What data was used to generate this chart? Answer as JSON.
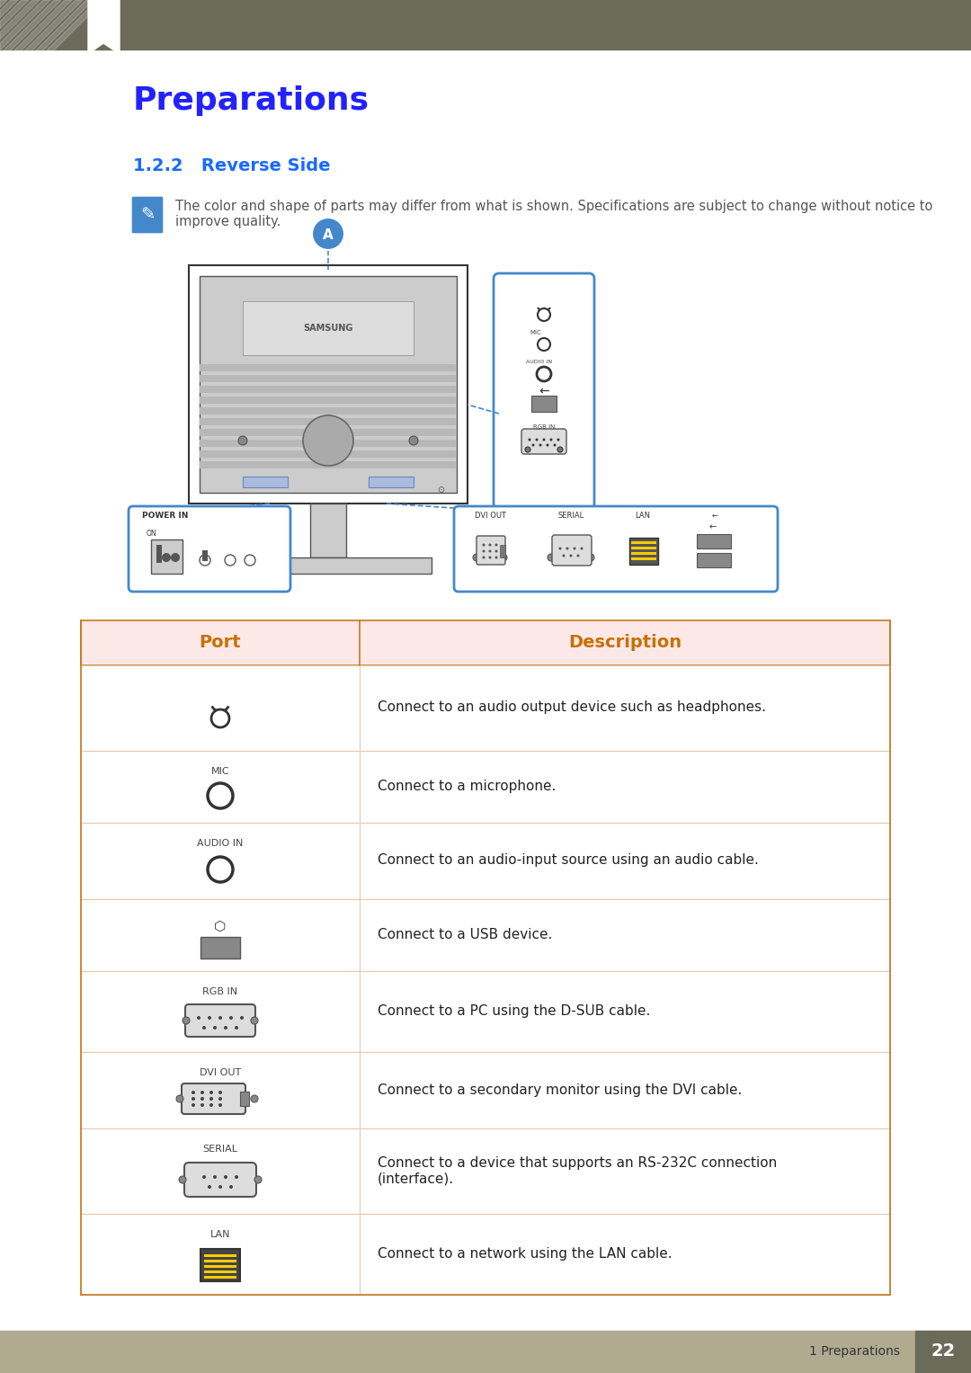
{
  "title": "Preparations",
  "section": "1.2.2   Reverse Side",
  "note": "The color and shape of parts may differ from what is shown. Specifications are subject to change without notice to improve quality.",
  "page_num": "22",
  "page_label": "1 Preparations",
  "header_bg": "#6b6b5a",
  "title_color": "#2222ff",
  "section_color": "#1a6aff",
  "table_header_bg": "#fde8e8",
  "table_header_text_color": "#c87000",
  "table_border_color": "#c87820",
  "table_row_divider": "#e8c8b0",
  "table_rows": [
    {
      "port_label": "",
      "port_symbol": "headphone",
      "description": "Connect to an audio output device such as headphones."
    },
    {
      "port_label": "MIC",
      "port_symbol": "mic",
      "description": "Connect to a microphone."
    },
    {
      "port_label": "AUDIO IN",
      "port_symbol": "audio_in",
      "description": "Connect to an audio-input source using an audio cable."
    },
    {
      "port_label": "",
      "port_symbol": "usb",
      "description": "Connect to a USB device."
    },
    {
      "port_label": "RGB IN",
      "port_symbol": "rgb_in",
      "description": "Connect to a PC using the D-SUB cable."
    },
    {
      "port_label": "DVI OUT",
      "port_symbol": "dvi_out",
      "description": "Connect to a secondary monitor using the DVI cable."
    },
    {
      "port_label": "SERIAL",
      "port_symbol": "serial",
      "description": "Connect to a device that supports an RS-232C connection\n(interface)."
    },
    {
      "port_label": "LAN",
      "port_symbol": "lan",
      "description": "Connect to a network using the LAN cable."
    }
  ],
  "footer_bg": "#b0ab90",
  "footer_text": "1 Preparations",
  "page_number_bg": "#6b6b5a",
  "note_icon_color": "#4488cc",
  "note_text_color": "#555555"
}
